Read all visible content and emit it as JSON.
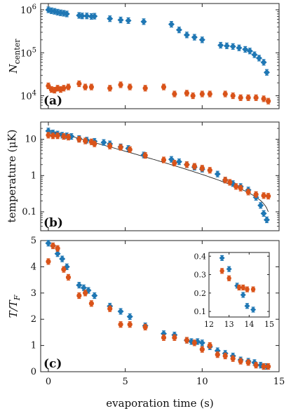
{
  "colors": {
    "blue": "#1f77b4",
    "orange": "#d95319"
  },
  "chart_data": [
    {
      "type": "scatter",
      "panel_label": "(a)",
      "ylabel_main": "N",
      "ylabel_sub": "center",
      "yscale": "log",
      "xlim": [
        -0.5,
        15
      ],
      "ylim": [
        5000,
        1400000
      ],
      "ytick_values": [
        10000,
        100000,
        1000000
      ],
      "ytick_base": "10",
      "ytick_exps": [
        "4",
        "5",
        "6"
      ],
      "series": [
        {
          "color": "blue",
          "marker": "diamond",
          "x": [
            0.0,
            0.2,
            0.4,
            0.6,
            0.8,
            1.0,
            1.2,
            2.0,
            2.2,
            2.5,
            2.8,
            3.0,
            4.0,
            4.7,
            5.2,
            6.2,
            8.0,
            8.5,
            9.0,
            9.5,
            10.0,
            11.2,
            11.6,
            12.0,
            12.4,
            12.8,
            13.1,
            13.4,
            13.7,
            14.0,
            14.2
          ],
          "y": [
            1000000,
            950000,
            920000,
            880000,
            850000,
            830000,
            800000,
            740000,
            720000,
            720000,
            700000,
            710000,
            620000,
            580000,
            560000,
            530000,
            460000,
            340000,
            260000,
            230000,
            200000,
            150000,
            145000,
            140000,
            130000,
            120000,
            110000,
            90000,
            75000,
            60000,
            35000
          ]
        },
        {
          "color": "orange",
          "marker": "circle",
          "x": [
            0.0,
            0.2,
            0.4,
            0.6,
            0.8,
            1.0,
            1.3,
            2.0,
            2.4,
            2.8,
            4.0,
            4.7,
            5.3,
            6.3,
            7.5,
            8.2,
            9.0,
            9.4,
            10.0,
            10.5,
            11.5,
            12.0,
            12.5,
            13.0,
            13.5,
            14.0,
            14.3
          ],
          "y": [
            17000,
            14000,
            13500,
            15000,
            14000,
            15000,
            16000,
            19000,
            16000,
            16000,
            15000,
            18000,
            16000,
            15000,
            16000,
            11000,
            11500,
            10000,
            11000,
            11000,
            11000,
            10000,
            9000,
            9000,
            9000,
            8500,
            7500
          ]
        }
      ]
    },
    {
      "type": "scatter",
      "panel_label": "(b)",
      "ylabel": "temperature (μK)",
      "yscale": "log",
      "xlim": [
        -0.5,
        15
      ],
      "ylim": [
        0.03,
        30
      ],
      "ytick_values": [
        0.1,
        1,
        10
      ],
      "ytick_labels": [
        "0.1",
        "1",
        "10"
      ],
      "fit_line": {
        "color": "#222222",
        "A": 18,
        "a": 0.92,
        "t0": 14.45,
        "b": 0.4,
        "x_start": 0.0,
        "x_end": 14.3
      },
      "series": [
        {
          "color": "blue",
          "marker": "diamond",
          "x": [
            0.0,
            0.3,
            0.6,
            0.9,
            1.2,
            1.5,
            2.0,
            2.5,
            3.0,
            3.6,
            4.0,
            4.7,
            5.2,
            6.2,
            8.0,
            8.5,
            9.0,
            9.5,
            10.0,
            11.0,
            11.5,
            12.0,
            12.5,
            13.0,
            13.5,
            13.8,
            14.0,
            14.2
          ],
          "y": [
            17,
            15,
            14,
            13,
            12.5,
            12,
            10.5,
            9.5,
            8.8,
            8.2,
            7.5,
            6.2,
            5.6,
            3.7,
            2.8,
            2.4,
            2.0,
            1.7,
            1.5,
            1.1,
            0.75,
            0.6,
            0.5,
            0.4,
            0.25,
            0.15,
            0.09,
            0.06
          ]
        },
        {
          "color": "orange",
          "marker": "circle",
          "x": [
            0.0,
            0.3,
            0.6,
            1.0,
            1.3,
            2.0,
            2.4,
            2.8,
            3.0,
            4.0,
            4.7,
            5.3,
            6.3,
            7.5,
            8.2,
            9.0,
            9.5,
            10.0,
            10.5,
            11.5,
            11.8,
            12.2,
            12.5,
            13.0,
            13.5,
            14.0,
            14.3
          ],
          "y": [
            13,
            12.5,
            12.5,
            12,
            11.5,
            10,
            9,
            8.5,
            7.5,
            6.5,
            6,
            5.2,
            3.6,
            2.7,
            2.2,
            2.0,
            1.8,
            1.6,
            1.4,
            0.75,
            0.65,
            0.5,
            0.45,
            0.35,
            0.3,
            0.28,
            0.27
          ]
        }
      ]
    },
    {
      "type": "scatter",
      "panel_label": "(c)",
      "ylabel": "T/T",
      "ylabel_sub": "F",
      "xlabel": "evaporation time (s)",
      "xlim": [
        -0.5,
        15
      ],
      "ylim": [
        0,
        5
      ],
      "xtick_values": [
        0,
        5,
        10,
        15
      ],
      "xtick_labels": [
        "0",
        "5",
        "10",
        "15"
      ],
      "ytick_values": [
        0,
        1,
        2,
        3,
        4,
        5
      ],
      "ytick_labels": [
        "0",
        "1",
        "2",
        "3",
        "4",
        "5"
      ],
      "series": [
        {
          "color": "blue",
          "marker": "diamond",
          "x": [
            0.0,
            0.3,
            0.6,
            0.9,
            1.2,
            2.0,
            2.3,
            2.6,
            3.0,
            4.0,
            4.7,
            5.3,
            6.3,
            7.5,
            8.2,
            9.0,
            9.3,
            9.7,
            10.0,
            10.5,
            11.0,
            11.5,
            12.0,
            12.5,
            13.0,
            13.4,
            13.8,
            14.0,
            14.2
          ],
          "y": [
            4.9,
            4.8,
            4.5,
            4.3,
            4.0,
            3.3,
            3.2,
            3.1,
            2.9,
            2.5,
            2.3,
            2.1,
            1.75,
            1.45,
            1.4,
            1.2,
            1.15,
            1.15,
            1.1,
            0.95,
            0.8,
            0.7,
            0.6,
            0.45,
            0.4,
            0.35,
            0.25,
            0.2,
            0.2
          ]
        },
        {
          "color": "orange",
          "marker": "circle",
          "x": [
            0.0,
            0.3,
            0.6,
            1.0,
            1.3,
            2.0,
            2.4,
            2.8,
            4.0,
            4.7,
            5.3,
            6.3,
            7.5,
            8.2,
            9.0,
            9.5,
            10.0,
            10.5,
            11.0,
            11.5,
            12.0,
            12.5,
            13.0,
            13.5,
            14.0,
            14.3
          ],
          "y": [
            4.2,
            4.8,
            4.7,
            3.9,
            3.6,
            2.9,
            3.0,
            2.6,
            2.4,
            1.8,
            1.8,
            1.7,
            1.3,
            1.3,
            1.2,
            1.1,
            0.85,
            1.0,
            0.65,
            0.6,
            0.5,
            0.4,
            0.35,
            0.25,
            0.2,
            0.2
          ]
        }
      ],
      "inset": {
        "xlim": [
          12,
          15
        ],
        "ylim": [
          0.07,
          0.42
        ],
        "xtick_values": [
          12,
          13,
          14,
          15
        ],
        "xtick_labels": [
          "12",
          "13",
          "14",
          "15"
        ],
        "ytick_values": [
          0.1,
          0.2,
          0.3,
          0.4
        ],
        "ytick_labels": [
          "0.1",
          "0.2",
          "0.3",
          "0.4"
        ],
        "series": [
          {
            "color": "blue",
            "marker": "diamond",
            "x": [
              12.65,
              13.0,
              13.4,
              13.7,
              13.9,
              14.2
            ],
            "y": [
              0.39,
              0.33,
              0.24,
              0.19,
              0.13,
              0.11
            ]
          },
          {
            "color": "orange",
            "marker": "circle",
            "x": [
              12.65,
              13.0,
              13.5,
              13.7,
              13.9,
              14.2
            ],
            "y": [
              0.32,
              0.28,
              0.23,
              0.23,
              0.22,
              0.22
            ]
          }
        ]
      }
    }
  ]
}
